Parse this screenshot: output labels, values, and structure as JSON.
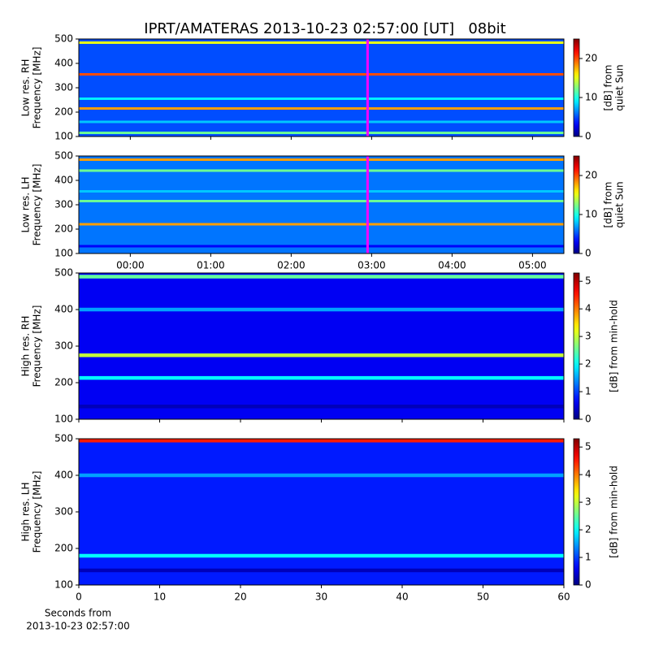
{
  "chart_data": [
    {
      "type": "heatmap",
      "title": "IPRT/AMATERAS 2013-10-23 02:57:00 [UT]   08bit",
      "ylabel": [
        "Low res. RH",
        "Frequency [MHz]"
      ],
      "ylim": [
        100,
        500
      ],
      "yticks": [
        100,
        200,
        300,
        400,
        500
      ],
      "xlim": [
        -0.64,
        5.39
      ],
      "xticks": [
        {
          "value": 0,
          "label": "00:00"
        },
        {
          "value": 1,
          "label": "01:00"
        },
        {
          "value": 2,
          "label": "02:00"
        },
        {
          "value": 3,
          "label": "03:00"
        },
        {
          "value": 4,
          "label": "04:00"
        },
        {
          "value": 5,
          "label": "05:00"
        }
      ],
      "show_xticklabels": false,
      "colormap": "jet",
      "background": 5,
      "bands": {
        "y": [
          485,
          355,
          255,
          215,
          160,
          115
        ],
        "values": [
          15,
          20,
          9,
          18,
          8,
          12
        ]
      },
      "marker": {
        "x": 2.95,
        "color": "#ff00ff"
      },
      "colorbar": {
        "label": [
          "[dB] from",
          "quiet Sun"
        ],
        "lim": [
          0,
          25
        ],
        "ticks": [
          0,
          10,
          20
        ]
      }
    },
    {
      "type": "heatmap",
      "ylabel": [
        "Low res. LH",
        "Frequency [MHz]"
      ],
      "ylim": [
        100,
        500
      ],
      "yticks": [
        100,
        200,
        300,
        400,
        500
      ],
      "xlim": [
        -0.64,
        5.39
      ],
      "xticks": [
        {
          "value": 0,
          "label": "00:00"
        },
        {
          "value": 1,
          "label": "01:00"
        },
        {
          "value": 2,
          "label": "02:00"
        },
        {
          "value": 3,
          "label": "03:00"
        },
        {
          "value": 4,
          "label": "04:00"
        },
        {
          "value": 5,
          "label": "05:00"
        }
      ],
      "show_xticklabels": true,
      "colormap": "jet",
      "background": 6,
      "bands": {
        "y": [
          485,
          440,
          355,
          315,
          220,
          130
        ],
        "values": [
          18,
          12,
          8,
          12,
          18,
          3
        ]
      },
      "marker": {
        "x": 2.95,
        "color": "#ff00ff"
      },
      "colorbar": {
        "label": [
          "[dB] from",
          "quiet Sun"
        ],
        "lim": [
          0,
          25
        ],
        "ticks": [
          0,
          10,
          20
        ]
      }
    },
    {
      "type": "heatmap",
      "ylabel": [
        "High res. RH",
        "Frequency [MHz]"
      ],
      "ylim": [
        100,
        500
      ],
      "yticks": [
        100,
        200,
        300,
        400,
        500
      ],
      "xlim": [
        0,
        60
      ],
      "xticks": [
        0,
        10,
        20,
        30,
        40,
        50,
        60
      ],
      "show_xticklabels": false,
      "colormap": "jet",
      "background": 0.6,
      "bands": {
        "y": [
          490,
          400,
          275,
          213,
          135
        ],
        "values": [
          2.5,
          1.5,
          3,
          2,
          0.3
        ]
      },
      "colorbar": {
        "label": [
          "[dB] from min-hold"
        ],
        "lim": [
          0,
          5.3
        ],
        "ticks": [
          0,
          1,
          2,
          3,
          4,
          5
        ]
      }
    },
    {
      "type": "heatmap",
      "ylabel": [
        "High res. LH",
        "Frequency [MHz]"
      ],
      "ylim": [
        100,
        500
      ],
      "yticks": [
        100,
        200,
        300,
        400,
        500
      ],
      "xlim": [
        0,
        60
      ],
      "xticks": [
        0,
        10,
        20,
        30,
        40,
        50,
        60
      ],
      "show_xticklabels": true,
      "xlabel": [
        "Seconds from",
        "2013-10-23 02:57:00"
      ],
      "colormap": "jet",
      "background": 0.8,
      "bands": {
        "y": [
          495,
          400,
          180,
          140
        ],
        "values": [
          4.5,
          1.5,
          2,
          0.3
        ]
      },
      "colorbar": {
        "label": [
          "[dB] from min-hold"
        ],
        "lim": [
          0,
          5.3
        ],
        "ticks": [
          0,
          1,
          2,
          3,
          4,
          5
        ]
      }
    }
  ]
}
